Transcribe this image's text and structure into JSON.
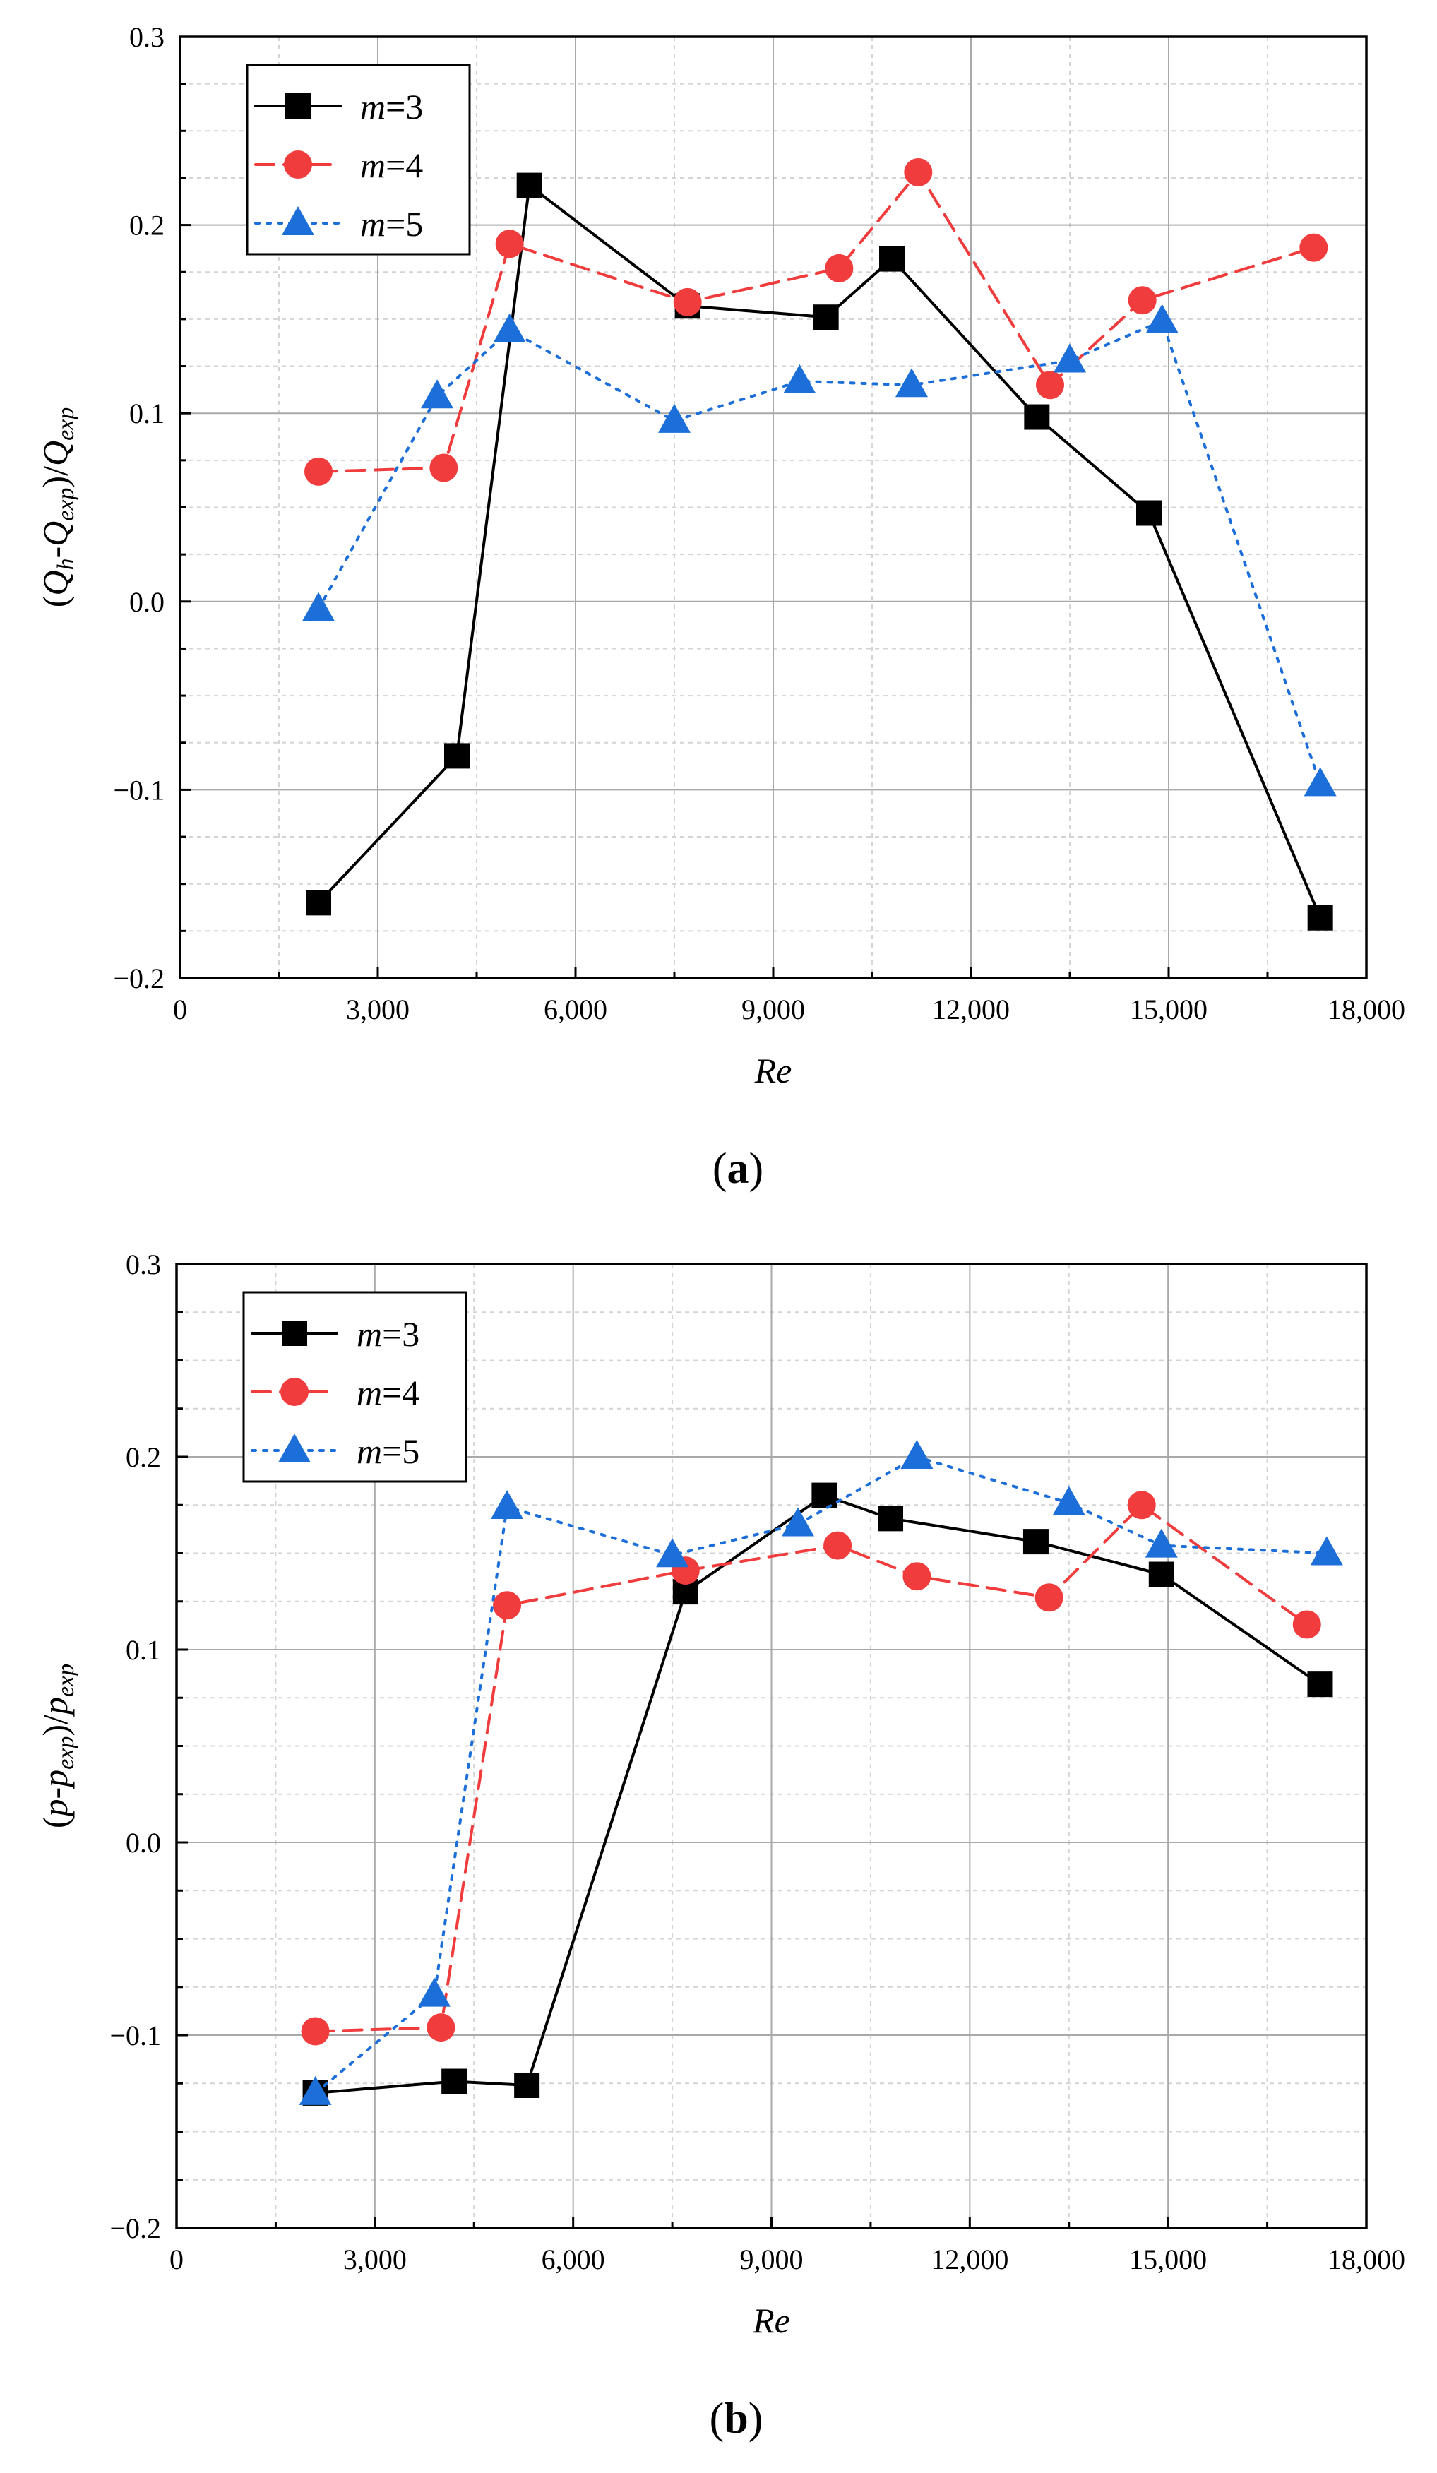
{
  "chart_data": [
    {
      "type": "line",
      "panel_label": "(a)",
      "xlabel": "Re",
      "ylabel_parts": [
        "(",
        "Q",
        "h",
        "-",
        "Q",
        "exp",
        ")/",
        "Q",
        "exp"
      ],
      "xlim": [
        0,
        18000
      ],
      "ylim": [
        -0.2,
        0.3
      ],
      "xticks": [
        0,
        3000,
        6000,
        9000,
        12000,
        15000,
        18000
      ],
      "xtick_labels": [
        "0",
        "3,000",
        "6,000",
        "9,000",
        "12,000",
        "15,000",
        "18,000"
      ],
      "yticks": [
        -0.2,
        -0.1,
        0.0,
        0.1,
        0.2,
        0.3
      ],
      "ytick_labels": [
        "−0.2",
        "−0.1",
        "0.0",
        "0.1",
        "0.2",
        "0.3"
      ],
      "grid": true,
      "legend_position": "top-left",
      "series": [
        {
          "name": "m=3",
          "name_var": "m",
          "name_rest": "=3",
          "color": "#000000",
          "marker": "square",
          "line": "solid",
          "x": [
            2100,
            4200,
            5300,
            7700,
            9800,
            10800,
            13000,
            14700,
            17300
          ],
          "y": [
            -0.16,
            -0.082,
            0.221,
            0.157,
            0.151,
            0.182,
            0.098,
            0.047,
            -0.168
          ]
        },
        {
          "name": "m=4",
          "name_var": "m",
          "name_rest": "=4",
          "color": "#f03c3c",
          "marker": "circle",
          "line": "dashed",
          "x": [
            2100,
            4000,
            5000,
            7700,
            10000,
            11200,
            13200,
            14600,
            17200
          ],
          "y": [
            0.069,
            0.071,
            0.19,
            0.159,
            0.177,
            0.228,
            0.115,
            0.16,
            0.188
          ]
        },
        {
          "name": "m=5",
          "name_var": "m",
          "name_rest": "=5",
          "color": "#1c6ed8",
          "marker": "triangle",
          "line": "dotted",
          "x": [
            2100,
            3900,
            5000,
            7500,
            9400,
            11100,
            13500,
            14900,
            17300
          ],
          "y": [
            -0.004,
            0.109,
            0.144,
            0.096,
            0.117,
            0.115,
            0.128,
            0.149,
            -0.097
          ]
        }
      ]
    },
    {
      "type": "line",
      "panel_label": "(b)",
      "xlabel": "Re",
      "ylabel_parts": [
        "(",
        "p",
        "",
        "-",
        "p",
        "exp",
        ")/",
        "p",
        "exp"
      ],
      "xlim": [
        0,
        18000
      ],
      "ylim": [
        -0.2,
        0.3
      ],
      "xticks": [
        0,
        3000,
        6000,
        9000,
        12000,
        15000,
        18000
      ],
      "xtick_labels": [
        "0",
        "3,000",
        "6,000",
        "9,000",
        "12,000",
        "15,000",
        "18,000"
      ],
      "yticks": [
        -0.2,
        -0.1,
        0.0,
        0.1,
        0.2,
        0.3
      ],
      "ytick_labels": [
        "−0.2",
        "−0.1",
        "0.0",
        "0.1",
        "0.2",
        "0.3"
      ],
      "grid": true,
      "legend_position": "top-left",
      "series": [
        {
          "name": "m=3",
          "name_var": "m",
          "name_rest": "=3",
          "color": "#000000",
          "marker": "square",
          "line": "solid",
          "x": [
            2100,
            4200,
            5300,
            7700,
            9800,
            10800,
            13000,
            14900,
            17300
          ],
          "y": [
            -0.13,
            -0.124,
            -0.126,
            0.13,
            0.18,
            0.168,
            0.156,
            0.139,
            0.082
          ]
        },
        {
          "name": "m=4",
          "name_var": "m",
          "name_rest": "=4",
          "color": "#f03c3c",
          "marker": "circle",
          "line": "dashed",
          "x": [
            2100,
            4000,
            5000,
            7700,
            10000,
            11200,
            13200,
            14600,
            17100
          ],
          "y": [
            -0.098,
            -0.096,
            0.123,
            0.141,
            0.154,
            0.138,
            0.127,
            0.175,
            0.113
          ]
        },
        {
          "name": "m=5",
          "name_var": "m",
          "name_rest": "=5",
          "color": "#1c6ed8",
          "marker": "triangle",
          "line": "dotted",
          "x": [
            2100,
            3900,
            5000,
            7500,
            9400,
            11200,
            13500,
            14900,
            17400
          ],
          "y": [
            -0.13,
            -0.079,
            0.174,
            0.149,
            0.165,
            0.2,
            0.176,
            0.154,
            0.15
          ]
        }
      ]
    }
  ]
}
